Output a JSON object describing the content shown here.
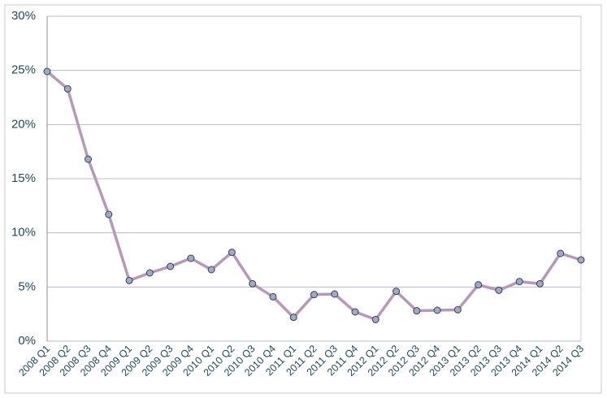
{
  "chart_data": {
    "type": "line",
    "categories": [
      "2008 Q1",
      "2008 Q2",
      "2008 Q3",
      "2008 Q4",
      "2009 Q1",
      "2009 Q2",
      "2009 Q3",
      "2009 Q4",
      "2010 Q1",
      "2010 Q2",
      "2010 Q3",
      "2010 Q4",
      "2011 Q1",
      "2011 Q2",
      "2011 Q3",
      "2011 Q4",
      "2012 Q1",
      "2012 Q2",
      "2012 Q3",
      "2012 Q4",
      "2013 Q1",
      "2013 Q2",
      "2013 Q3",
      "2013 Q4",
      "2014 Q1",
      "2014 Q2",
      "2014 Q3"
    ],
    "values": [
      24.9,
      23.3,
      16.8,
      11.7,
      5.6,
      6.3,
      6.9,
      7.65,
      6.6,
      8.2,
      5.3,
      4.1,
      2.2,
      4.3,
      4.35,
      2.7,
      2.0,
      4.6,
      2.8,
      2.85,
      2.9,
      5.2,
      4.7,
      5.5,
      5.3,
      8.1,
      7.5
    ],
    "color": "#b898b8",
    "marker_color": "#a2a9c6",
    "ylim": [
      0,
      30
    ],
    "yticks": [
      {
        "value": 0,
        "label": "0%"
      },
      {
        "value": 5,
        "label": "5%"
      },
      {
        "value": 10,
        "label": "10%"
      },
      {
        "value": 15,
        "label": "15%"
      },
      {
        "value": 20,
        "label": "20%"
      },
      {
        "value": 25,
        "label": "25%"
      },
      {
        "value": 30,
        "label": "30%"
      }
    ],
    "grid": true
  }
}
